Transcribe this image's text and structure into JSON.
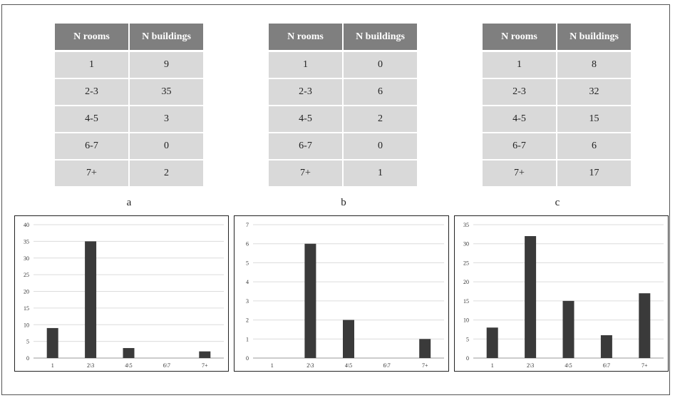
{
  "tables": [
    {
      "label": "a",
      "headers": [
        "N rooms",
        "N buildings"
      ],
      "rows": [
        [
          "1",
          "9"
        ],
        [
          "2-3",
          "35"
        ],
        [
          "4-5",
          "3"
        ],
        [
          "6-7",
          "0"
        ],
        [
          "7+",
          "2"
        ]
      ]
    },
    {
      "label": "b",
      "headers": [
        "N rooms",
        "N buildings"
      ],
      "rows": [
        [
          "1",
          "0"
        ],
        [
          "2-3",
          "6"
        ],
        [
          "4-5",
          "2"
        ],
        [
          "6-7",
          "0"
        ],
        [
          "7+",
          "1"
        ]
      ]
    },
    {
      "label": "c",
      "headers": [
        "N rooms",
        "N buildings"
      ],
      "rows": [
        [
          "1",
          "8"
        ],
        [
          "2-3",
          "32"
        ],
        [
          "4-5",
          "15"
        ],
        [
          "6-7",
          "6"
        ],
        [
          "7+",
          "17"
        ]
      ]
    }
  ],
  "chart_data": [
    {
      "type": "bar",
      "categories": [
        "1",
        "2\\3",
        "4\\5",
        "6\\7",
        "7+"
      ],
      "values": [
        9,
        35,
        3,
        0,
        2
      ],
      "ylim": [
        0,
        40
      ],
      "yticks": [
        0,
        5,
        10,
        15,
        20,
        25,
        30,
        35,
        40
      ],
      "grid": true,
      "bar_color": "#3a3a3a"
    },
    {
      "type": "bar",
      "categories": [
        "1",
        "2\\3",
        "4\\5",
        "6\\7",
        "7+"
      ],
      "values": [
        0,
        6,
        2,
        0,
        1
      ],
      "ylim": [
        0,
        7
      ],
      "yticks": [
        0,
        1,
        2,
        3,
        4,
        5,
        6,
        7
      ],
      "grid": true,
      "bar_color": "#3a3a3a"
    },
    {
      "type": "bar",
      "categories": [
        "1",
        "2\\3",
        "4\\5",
        "6\\7",
        "7+"
      ],
      "values": [
        8,
        32,
        15,
        6,
        17
      ],
      "ylim": [
        0,
        35
      ],
      "yticks": [
        0,
        5,
        10,
        15,
        20,
        25,
        30,
        35
      ],
      "grid": true,
      "bar_color": "#3a3a3a"
    }
  ]
}
